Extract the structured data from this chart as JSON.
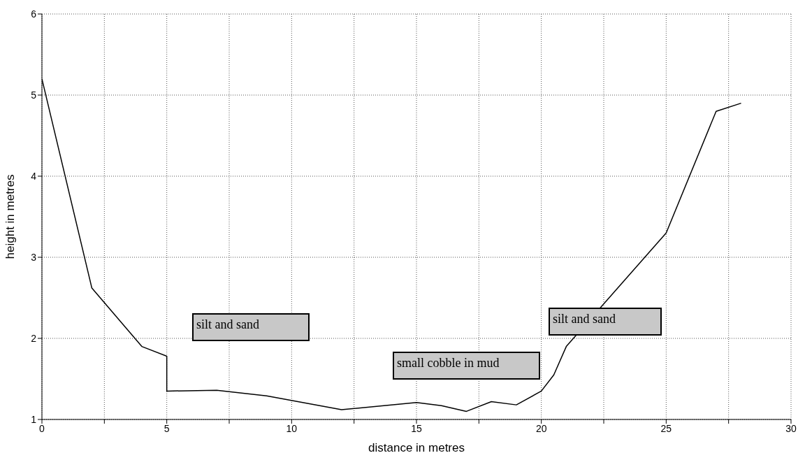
{
  "chart_data": {
    "type": "line",
    "xlabel": "distance in metres",
    "ylabel": "height in metres",
    "x": [
      0,
      2,
      4,
      5,
      5,
      7,
      9,
      12,
      15,
      16,
      17,
      18,
      19,
      20,
      20.5,
      21,
      25,
      27,
      28
    ],
    "series": [
      {
        "color": "#000000",
        "values": [
          5.2,
          2.62,
          1.9,
          1.78,
          1.35,
          1.36,
          1.29,
          1.12,
          1.21,
          1.17,
          1.1,
          1.22,
          1.18,
          1.35,
          1.55,
          1.9,
          3.3,
          4.8,
          4.9
        ]
      }
    ],
    "xlim": [
      0,
      30
    ],
    "ylim": [
      1,
      6
    ],
    "xticks": [
      0,
      {
        "value": 2.5,
        "label": null
      },
      5,
      {
        "value": 7.5,
        "label": null
      },
      10,
      {
        "value": 12.5,
        "label": null
      },
      15,
      {
        "value": 17.5,
        "label": null
      },
      20,
      {
        "value": 22.5,
        "label": null
      },
      25,
      {
        "value": 27.5,
        "label": null
      },
      30
    ],
    "yticks": [
      1,
      2,
      3,
      4,
      5,
      6
    ],
    "grid": true,
    "marker": "none",
    "line_style": "solid",
    "annotations": [
      "silt and sand",
      "small cobble in mud",
      "silt and sand"
    ]
  }
}
